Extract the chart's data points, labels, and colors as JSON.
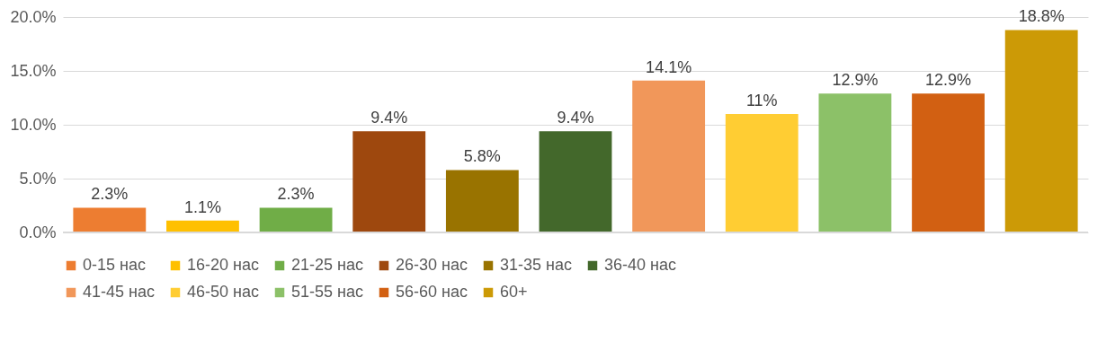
{
  "chart_data": {
    "type": "bar",
    "categories": [
      null,
      null,
      null,
      null,
      null,
      null,
      null,
      null,
      null,
      null,
      null
    ],
    "series": [
      {
        "name": "0-15 нас",
        "color": "#ed7d31",
        "values": [
          2.3,
          null,
          null,
          null,
          null,
          null,
          null,
          null,
          null,
          null,
          null
        ],
        "value_labels": [
          "2.3%",
          null,
          null,
          null,
          null,
          null,
          null,
          null,
          null,
          null,
          null
        ]
      },
      {
        "name": "16-20 нас",
        "color": "#ffc000",
        "values": [
          null,
          1.1,
          null,
          null,
          null,
          null,
          null,
          null,
          null,
          null,
          null
        ],
        "value_labels": [
          null,
          "1.1%",
          null,
          null,
          null,
          null,
          null,
          null,
          null,
          null,
          null
        ]
      },
      {
        "name": "21-25 нас",
        "color": "#70ad47",
        "values": [
          null,
          null,
          2.3,
          null,
          null,
          null,
          null,
          null,
          null,
          null,
          null
        ],
        "value_labels": [
          null,
          null,
          "2.3%",
          null,
          null,
          null,
          null,
          null,
          null,
          null,
          null
        ]
      },
      {
        "name": "26-30 нас",
        "color": "#9e480e",
        "values": [
          null,
          null,
          null,
          9.4,
          null,
          null,
          null,
          null,
          null,
          null,
          null
        ],
        "value_labels": [
          null,
          null,
          null,
          "9.4%",
          null,
          null,
          null,
          null,
          null,
          null,
          null
        ]
      },
      {
        "name": "31-35 нас",
        "color": "#997300",
        "values": [
          null,
          null,
          null,
          null,
          5.8,
          null,
          null,
          null,
          null,
          null,
          null
        ],
        "value_labels": [
          null,
          null,
          null,
          null,
          "5.8%",
          null,
          null,
          null,
          null,
          null,
          null
        ]
      },
      {
        "name": "36-40 нас",
        "color": "#43682b",
        "values": [
          null,
          null,
          null,
          null,
          null,
          9.4,
          null,
          null,
          null,
          null,
          null
        ],
        "value_labels": [
          null,
          null,
          null,
          null,
          null,
          "9.4%",
          null,
          null,
          null,
          null,
          null
        ]
      },
      {
        "name": "41-45 нас",
        "color": "#f1975a",
        "values": [
          null,
          null,
          null,
          null,
          null,
          null,
          14.1,
          null,
          null,
          null,
          null
        ],
        "value_labels": [
          null,
          null,
          null,
          null,
          null,
          null,
          "14.1%",
          null,
          null,
          null,
          null
        ]
      },
      {
        "name": "46-50 нас",
        "color": "#ffcd33",
        "values": [
          null,
          null,
          null,
          null,
          null,
          null,
          null,
          11,
          null,
          null,
          null
        ],
        "value_labels": [
          null,
          null,
          null,
          null,
          null,
          null,
          null,
          "11%",
          null,
          null,
          null
        ]
      },
      {
        "name": "51-55 нас",
        "color": "#8cc168",
        "values": [
          null,
          null,
          null,
          null,
          null,
          null,
          null,
          null,
          12.9,
          null,
          null
        ],
        "value_labels": [
          null,
          null,
          null,
          null,
          null,
          null,
          null,
          null,
          "12.9%",
          null,
          null
        ]
      },
      {
        "name": "56-60 нас",
        "color": "#d26012",
        "values": [
          null,
          null,
          null,
          null,
          null,
          null,
          null,
          null,
          null,
          12.9,
          null
        ],
        "value_labels": [
          null,
          null,
          null,
          null,
          null,
          null,
          null,
          null,
          null,
          "12.9%",
          null
        ]
      },
      {
        "name": "60+",
        "color": "#cc9a06",
        "values": [
          null,
          null,
          null,
          null,
          null,
          null,
          null,
          null,
          null,
          null,
          18.8
        ],
        "value_labels": [
          null,
          null,
          null,
          null,
          null,
          null,
          null,
          null,
          null,
          null,
          "18.8%"
        ]
      }
    ],
    "ylim": [
      0,
      20
    ],
    "yticks": [
      {
        "value": 0,
        "label": "0.0%"
      },
      {
        "value": 5,
        "label": "5.0%"
      },
      {
        "value": 10,
        "label": "10.0%"
      },
      {
        "value": 15,
        "label": "15.0%"
      },
      {
        "value": 20,
        "label": "20.0%"
      }
    ],
    "grid": "y",
    "legend": "bottom",
    "tick_labels": "y"
  }
}
